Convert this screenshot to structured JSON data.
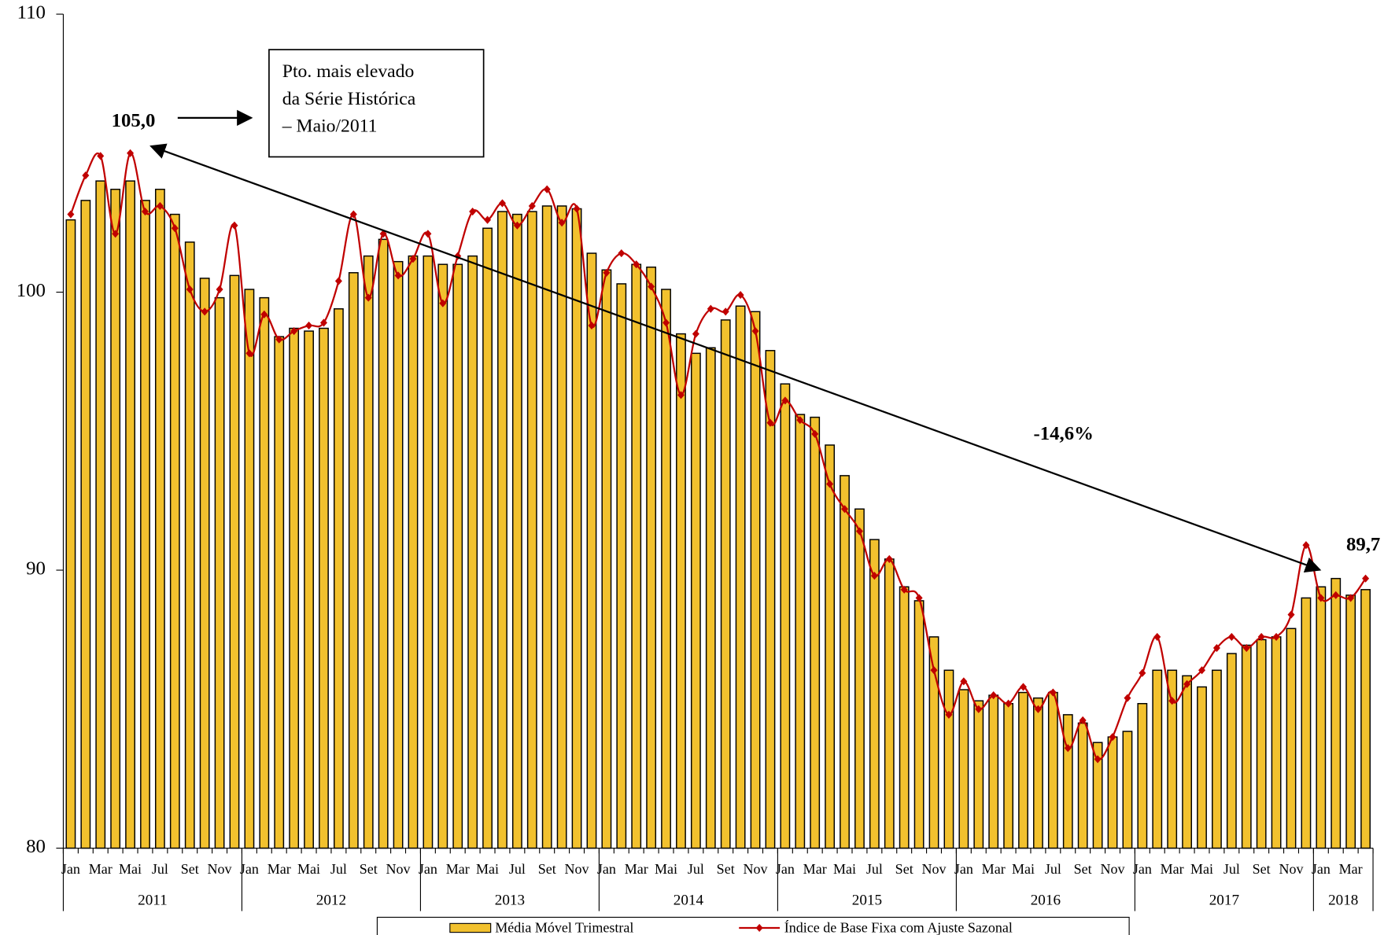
{
  "chart_data": {
    "type": "bar",
    "categories": [
      "Jan",
      null,
      "Mar",
      null,
      "Mai",
      null,
      "Jul",
      null,
      "Set",
      null,
      "Nov",
      null,
      "Jan",
      null,
      "Mar",
      null,
      "Mai",
      null,
      "Jul",
      null,
      "Set",
      null,
      "Nov",
      null,
      "Jan",
      null,
      "Mar",
      null,
      "Mai",
      null,
      "Jul",
      null,
      "Set",
      null,
      "Nov",
      null,
      "Jan",
      null,
      "Mar",
      null,
      "Mai",
      null,
      "Jul",
      null,
      "Set",
      null,
      "Nov",
      null,
      "Jan",
      null,
      "Mar",
      null,
      "Mai",
      null,
      "Jul",
      null,
      "Set",
      null,
      "Nov",
      null,
      "Jan",
      null,
      "Mar",
      null,
      "Mai",
      null,
      "Jul",
      null,
      "Set",
      null,
      "Nov",
      null,
      "Jan",
      null,
      "Mar",
      null,
      "Mai",
      null,
      "Jul",
      null,
      "Set",
      null,
      "Nov",
      null,
      "Jan",
      null,
      "Mar",
      null
    ],
    "years": [
      "2011",
      "2012",
      "2013",
      "2014",
      "2015",
      "2016",
      "2017",
      "2018"
    ],
    "series": [
      {
        "name": "Média Móvel Trimestral",
        "type": "bar",
        "color": "#f2c12e",
        "values": [
          102.6,
          103.3,
          104.0,
          103.7,
          104.0,
          103.3,
          103.7,
          102.8,
          101.8,
          100.5,
          99.8,
          100.6,
          100.1,
          99.8,
          98.4,
          98.7,
          98.6,
          98.7,
          99.4,
          100.7,
          101.3,
          101.9,
          101.1,
          101.3,
          101.3,
          101.0,
          101.0,
          101.3,
          102.3,
          102.9,
          102.8,
          102.9,
          103.1,
          103.1,
          103.0,
          101.4,
          100.8,
          100.3,
          101.0,
          100.9,
          100.1,
          98.5,
          97.8,
          98.0,
          99.0,
          99.5,
          99.3,
          97.9,
          96.7,
          95.6,
          95.5,
          94.5,
          93.4,
          92.2,
          91.1,
          90.4,
          89.4,
          88.9,
          87.6,
          86.4,
          85.7,
          85.3,
          85.5,
          85.2,
          85.6,
          85.4,
          85.6,
          84.8,
          84.5,
          83.8,
          84.0,
          84.2,
          85.2,
          86.4,
          86.4,
          86.2,
          85.8,
          86.4,
          87.0,
          87.3,
          87.5,
          87.6,
          87.9,
          89.0,
          89.4,
          89.7,
          89.1,
          89.3
        ]
      },
      {
        "name": "Índice de Base Fixa com Ajuste Sazonal",
        "type": "line",
        "color": "#c00000",
        "values": [
          102.8,
          104.2,
          104.9,
          102.1,
          105.0,
          102.9,
          103.1,
          102.3,
          100.1,
          99.3,
          100.1,
          102.4,
          97.8,
          99.2,
          98.3,
          98.6,
          98.8,
          98.9,
          100.4,
          102.8,
          99.8,
          102.1,
          100.6,
          101.2,
          102.1,
          99.6,
          101.3,
          102.9,
          102.6,
          103.2,
          102.4,
          103.1,
          103.7,
          102.5,
          103.0,
          98.8,
          100.7,
          101.4,
          101.0,
          100.2,
          98.9,
          96.3,
          98.5,
          99.4,
          99.3,
          99.9,
          98.6,
          95.3,
          96.1,
          95.4,
          94.9,
          93.1,
          92.2,
          91.4,
          89.8,
          90.4,
          89.3,
          89.0,
          86.4,
          84.8,
          86.0,
          85.0,
          85.5,
          85.2,
          85.8,
          85.0,
          85.6,
          83.6,
          84.6,
          83.2,
          84.0,
          85.4,
          86.3,
          87.6,
          85.3,
          85.9,
          86.4,
          87.2,
          87.6,
          87.2,
          87.6,
          87.6,
          88.4,
          90.9,
          89.0,
          89.1,
          89.0,
          89.7
        ]
      }
    ],
    "ylim": [
      80,
      110
    ],
    "yticks": [
      80,
      90,
      100,
      110
    ],
    "annotations": [
      "Pto. mais elevado",
      "da Série Histórica",
      "– Maio/2011",
      "105,0",
      "-14,6%",
      "89,7"
    ]
  }
}
